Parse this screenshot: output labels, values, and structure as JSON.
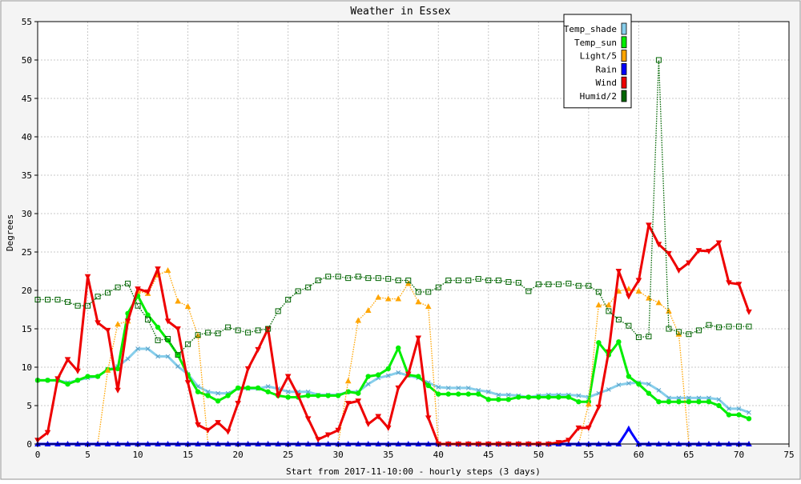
{
  "chart_data": {
    "type": "line",
    "title": "Weather in Essex",
    "xlabel": "Start from 2017-11-10:00 - hourly steps (3 days)",
    "ylabel": "Degrees",
    "xlim": [
      0,
      75
    ],
    "ylim": [
      0,
      55
    ],
    "xticks": [
      0,
      5,
      10,
      15,
      20,
      25,
      30,
      35,
      40,
      45,
      50,
      55,
      60,
      65,
      70,
      75
    ],
    "yticks": [
      0,
      5,
      10,
      15,
      20,
      25,
      30,
      35,
      40,
      45,
      50,
      55
    ],
    "grid": true,
    "legend_position": "top-right",
    "series": [
      {
        "name": "Temp_shade",
        "color": "#87ceeb",
        "marker": "x",
        "dashed": false,
        "values": [
          8.3,
          8.3,
          8.3,
          8.0,
          8.3,
          8.6,
          8.8,
          9.7,
          10.1,
          11.1,
          12.4,
          12.4,
          11.4,
          11.4,
          10.1,
          9.1,
          7.5,
          6.8,
          6.6,
          6.6,
          7.2,
          7.2,
          7.2,
          7.5,
          7.2,
          6.8,
          6.8,
          6.8,
          6.4,
          6.4,
          6.4,
          6.8,
          6.8,
          7.8,
          8.6,
          8.9,
          9.3,
          8.9,
          8.6,
          8.0,
          7.4,
          7.3,
          7.3,
          7.3,
          7.0,
          6.8,
          6.4,
          6.4,
          6.3,
          6.1,
          6.3,
          6.4,
          6.4,
          6.4,
          6.3,
          6.1,
          6.6,
          7.1,
          7.7,
          7.9,
          8.0,
          7.8,
          7.0,
          6.0,
          6.0,
          6.0,
          6.0,
          6.0,
          5.8,
          4.6,
          4.6,
          4.1
        ]
      },
      {
        "name": "Temp_sun",
        "color": "#00ee00",
        "marker": "circle",
        "dashed": false,
        "values": [
          8.3,
          8.3,
          8.3,
          7.8,
          8.3,
          8.8,
          8.8,
          9.7,
          9.8,
          17.0,
          19.3,
          16.8,
          15.2,
          13.5,
          11.6,
          9.0,
          6.8,
          6.3,
          5.6,
          6.3,
          7.3,
          7.3,
          7.3,
          6.8,
          6.3,
          6.1,
          6.1,
          6.3,
          6.3,
          6.3,
          6.3,
          6.8,
          6.6,
          8.8,
          9.0,
          9.8,
          12.5,
          9.0,
          8.8,
          7.6,
          6.5,
          6.5,
          6.5,
          6.5,
          6.5,
          5.8,
          5.8,
          5.8,
          6.1,
          6.1,
          6.1,
          6.1,
          6.1,
          6.1,
          5.5,
          5.5,
          13.2,
          11.6,
          13.3,
          8.8,
          7.8,
          6.6,
          5.5,
          5.5,
          5.5,
          5.5,
          5.5,
          5.5,
          5.0,
          3.8,
          3.8,
          3.3
        ]
      },
      {
        "name": "Light/5",
        "color": "#ffa500",
        "marker": "triangle-up",
        "dashed": true,
        "values": [
          0,
          0,
          0,
          0,
          0,
          0,
          0,
          9.6,
          15.6,
          16.0,
          19.9,
          19.6,
          22.0,
          22.6,
          18.6,
          17.9,
          14.1,
          0,
          0,
          0,
          0,
          0,
          0,
          0,
          0,
          0,
          0,
          0,
          0,
          0,
          0,
          8.2,
          16.1,
          17.4,
          19.1,
          18.9,
          18.9,
          20.9,
          18.5,
          17.9,
          0,
          0,
          0,
          0,
          0,
          0,
          0,
          0,
          0,
          0,
          0,
          0,
          0,
          0,
          0,
          5.2,
          18.1,
          18.1,
          19.9,
          20.2,
          19.9,
          19.0,
          18.4,
          17.3,
          14.3,
          0,
          0,
          0,
          0,
          0,
          0,
          0
        ]
      },
      {
        "name": "Rain",
        "color": "#0000ff",
        "marker": "triangle-up",
        "dashed": false,
        "values": [
          0,
          0,
          0,
          0,
          0,
          0,
          0,
          0,
          0,
          0,
          0,
          0,
          0,
          0,
          0,
          0,
          0,
          0,
          0,
          0,
          0,
          0,
          0,
          0,
          0,
          0,
          0,
          0,
          0,
          0,
          0,
          0,
          0,
          0,
          0,
          0,
          0,
          0,
          0,
          0,
          0,
          0,
          0,
          0,
          0,
          0,
          0,
          0,
          0,
          0,
          0,
          0,
          0,
          0,
          0,
          0,
          0,
          0,
          0,
          2.0,
          0,
          0,
          0,
          0,
          0,
          0,
          0,
          0,
          0,
          0,
          0,
          0
        ]
      },
      {
        "name": "Wind",
        "color": "#ee0000",
        "marker": "triangle-down",
        "dashed": false,
        "values": [
          0.5,
          1.5,
          8.5,
          11.0,
          9.5,
          21.8,
          15.8,
          14.8,
          7.0,
          16.0,
          20.2,
          19.8,
          22.8,
          16.0,
          15.0,
          8.0,
          2.5,
          1.8,
          2.8,
          1.6,
          5.3,
          9.8,
          12.3,
          15.0,
          6.3,
          8.8,
          6.3,
          3.3,
          0.6,
          1.2,
          1.8,
          5.3,
          5.6,
          2.6,
          3.6,
          2.1,
          7.3,
          9.1,
          13.8,
          3.4,
          0,
          0,
          0,
          0,
          0,
          0,
          0,
          0,
          0,
          0,
          0,
          0,
          0.2,
          0.5,
          2.1,
          2.1,
          4.8,
          12.0,
          22.5,
          19.2,
          21.3,
          28.5,
          26.0,
          24.8,
          22.6,
          23.6,
          25.2,
          25.1,
          26.2,
          21.0,
          20.8,
          17.2
        ]
      },
      {
        "name": "Humid/2",
        "color": "#006400",
        "marker": "square",
        "dashed": true,
        "values": [
          18.8,
          18.8,
          18.8,
          18.5,
          18.0,
          18.0,
          19.2,
          19.7,
          20.4,
          20.9,
          18.0,
          16.2,
          13.5,
          13.7,
          11.6,
          13.0,
          14.2,
          14.5,
          14.4,
          15.2,
          14.8,
          14.5,
          14.8,
          15.0,
          17.3,
          18.8,
          19.9,
          20.4,
          21.3,
          21.8,
          21.8,
          21.6,
          21.8,
          21.6,
          21.6,
          21.5,
          21.3,
          21.3,
          19.8,
          19.8,
          20.4,
          21.3,
          21.3,
          21.3,
          21.5,
          21.3,
          21.3,
          21.1,
          21.0,
          19.9,
          20.8,
          20.8,
          20.8,
          20.9,
          20.6,
          20.6,
          19.8,
          17.3,
          16.2,
          15.4,
          13.9,
          14.0,
          50.0,
          15.0,
          14.6,
          14.3,
          14.8,
          15.5,
          15.2,
          15.3,
          15.3,
          15.3
        ]
      }
    ]
  }
}
